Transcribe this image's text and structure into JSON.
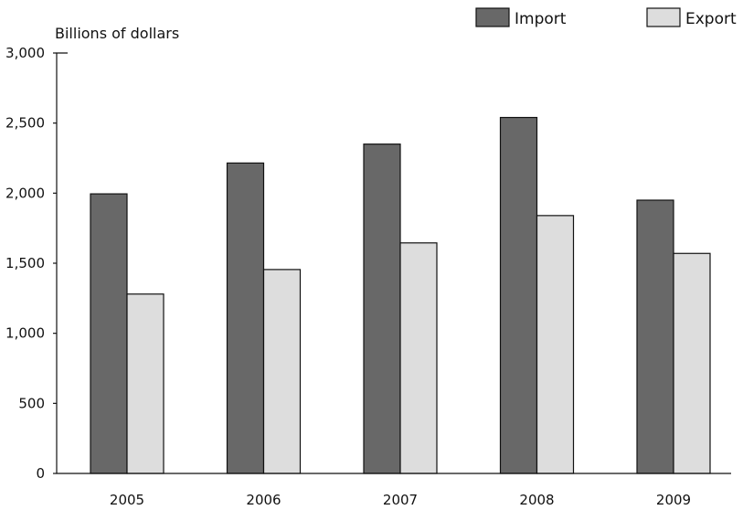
{
  "chart_data": {
    "type": "bar",
    "ylabel": "Billions of dollars",
    "xlabel": "",
    "categories": [
      "2005",
      "2006",
      "2007",
      "2008",
      "2009"
    ],
    "series": [
      {
        "name": "Import",
        "values": [
          1995,
          2215,
          2350,
          2540,
          1950
        ],
        "color": "#686868"
      },
      {
        "name": "Export",
        "values": [
          1280,
          1455,
          1645,
          1840,
          1570
        ],
        "color": "#dddddd"
      }
    ],
    "ylim": [
      0,
      3000
    ],
    "yticks": [
      0,
      500,
      1000,
      1500,
      2000,
      2500,
      3000
    ],
    "ytick_labels": [
      "0",
      "500",
      "1,000",
      "1,500",
      "2,000",
      "2,500",
      "3,000"
    ],
    "legend_position": "top-right",
    "grid": false
  }
}
